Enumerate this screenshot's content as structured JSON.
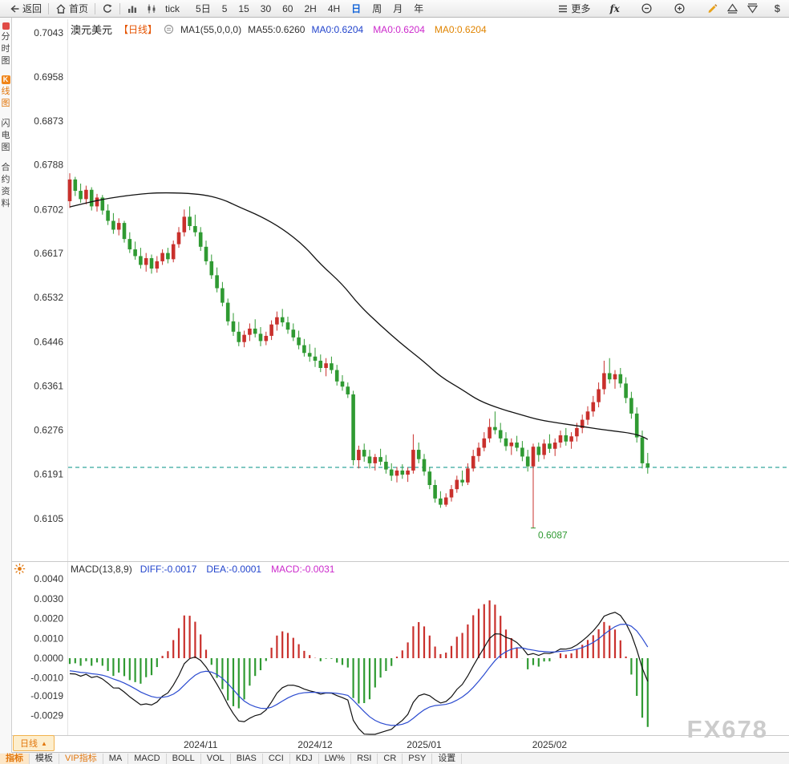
{
  "toolbar": {
    "back_label": "返回",
    "home_label": "首页",
    "tick_label": "tick",
    "periods": [
      "5日",
      "5",
      "15",
      "30",
      "60",
      "2H",
      "4H",
      "日",
      "周",
      "月",
      "年"
    ],
    "active_period": "日",
    "more_label": "更多",
    "fx_label": "fx",
    "dollar_label": "$"
  },
  "sidebar": {
    "items": [
      {
        "label": "分时图",
        "active": false
      },
      {
        "label": "K线图",
        "badge_first_char": true,
        "active": true
      },
      {
        "label": "闪电图",
        "active": false
      },
      {
        "label": "合约资料",
        "active": false
      }
    ]
  },
  "main_header": {
    "symbol": "澳元美元",
    "period_tag": "【日线】",
    "ma_settings": "MA1(55,0,0,0)",
    "ma55_label": "MA55:0.6260",
    "ma_values": [
      {
        "text": "MA0:0.6204",
        "color": "#2244cc"
      },
      {
        "text": "MA0:0.6204",
        "color": "#cc2acc"
      },
      {
        "text": "MA0:0.6204",
        "color": "#e08400"
      }
    ]
  },
  "macd_header": {
    "title": "MACD(13,8,9)",
    "values": [
      {
        "text": "DIFF:-0.0017",
        "color": "#2244cc"
      },
      {
        "text": "DEA:-0.0001",
        "color": "#2244cc"
      },
      {
        "text": "MACD:-0.0031",
        "color": "#cc2acc"
      }
    ]
  },
  "bottom": {
    "period_button": "日线",
    "period_button_arrow": "▲",
    "tabs": [
      {
        "label": "指标",
        "style": "active"
      },
      {
        "label": "模板",
        "style": "normal"
      },
      {
        "label": "VIP指标",
        "style": "vip"
      },
      {
        "label": "MA",
        "style": "normal"
      },
      {
        "label": "MACD",
        "style": "normal"
      },
      {
        "label": "BOLL",
        "style": "normal"
      },
      {
        "label": "VOL",
        "style": "normal"
      },
      {
        "label": "BIAS",
        "style": "normal"
      },
      {
        "label": "CCI",
        "style": "normal"
      },
      {
        "label": "KDJ",
        "style": "normal"
      },
      {
        "label": "LW%",
        "style": "normal"
      },
      {
        "label": "RSI",
        "style": "normal"
      },
      {
        "label": "CR",
        "style": "normal"
      },
      {
        "label": "PSY",
        "style": "normal"
      },
      {
        "label": "设置",
        "style": "normal"
      }
    ]
  },
  "watermark": "FX678",
  "chart_data": {
    "type": "candlestick",
    "symbol": "澳元美元",
    "timeframe": "日线",
    "price_axis_ticks": [
      "0.7043",
      "0.6958",
      "0.6873",
      "0.6788",
      "0.6702",
      "0.6617",
      "0.6532",
      "0.6446",
      "0.6361",
      "0.6276",
      "0.6191",
      "0.6105"
    ],
    "price_range": {
      "top": 0.7043,
      "bottom": 0.6105
    },
    "x_ticks": [
      {
        "label": "2024/11",
        "index": 24
      },
      {
        "label": "2024/12",
        "index": 45
      },
      {
        "label": "2025/01",
        "index": 65
      },
      {
        "label": "2025/02",
        "index": 88
      }
    ],
    "current_price": 0.6204,
    "low_annotation": {
      "text": "0.6087",
      "index": 85
    },
    "ma55_value": 0.626,
    "candles": [
      [
        0.6718,
        0.6772,
        0.6705,
        0.676
      ],
      [
        0.676,
        0.6765,
        0.6728,
        0.6738
      ],
      [
        0.6738,
        0.6752,
        0.6715,
        0.6722
      ],
      [
        0.6722,
        0.6748,
        0.6712,
        0.674
      ],
      [
        0.674,
        0.6745,
        0.67,
        0.6708
      ],
      [
        0.6708,
        0.6732,
        0.6698,
        0.6725
      ],
      [
        0.6725,
        0.673,
        0.6692,
        0.67
      ],
      [
        0.67,
        0.6712,
        0.6672,
        0.668
      ],
      [
        0.668,
        0.6695,
        0.6655,
        0.6663
      ],
      [
        0.6663,
        0.6685,
        0.6652,
        0.6676
      ],
      [
        0.6676,
        0.668,
        0.6638,
        0.6645
      ],
      [
        0.6645,
        0.6658,
        0.6618,
        0.6625
      ],
      [
        0.6625,
        0.664,
        0.6605,
        0.6612
      ],
      [
        0.6612,
        0.6628,
        0.6588,
        0.6595
      ],
      [
        0.6595,
        0.6618,
        0.6582,
        0.6608
      ],
      [
        0.6608,
        0.6615,
        0.6578,
        0.6588
      ],
      [
        0.6588,
        0.6612,
        0.658,
        0.6602
      ],
      [
        0.6602,
        0.6625,
        0.6595,
        0.6618
      ],
      [
        0.6618,
        0.6628,
        0.6598,
        0.6606
      ],
      [
        0.6606,
        0.6642,
        0.66,
        0.6635
      ],
      [
        0.6635,
        0.6668,
        0.6628,
        0.6658
      ],
      [
        0.6658,
        0.6702,
        0.665,
        0.6688
      ],
      [
        0.6688,
        0.6708,
        0.6662,
        0.667
      ],
      [
        0.667,
        0.6692,
        0.665,
        0.6658
      ],
      [
        0.6658,
        0.6668,
        0.6622,
        0.663
      ],
      [
        0.663,
        0.6642,
        0.6595,
        0.6602
      ],
      [
        0.6602,
        0.6615,
        0.6568,
        0.6575
      ],
      [
        0.6575,
        0.659,
        0.6542,
        0.655
      ],
      [
        0.655,
        0.6562,
        0.6515,
        0.6522
      ],
      [
        0.6522,
        0.653,
        0.6478,
        0.6486
      ],
      [
        0.6486,
        0.6502,
        0.6458,
        0.6466
      ],
      [
        0.6466,
        0.6485,
        0.6438,
        0.6446
      ],
      [
        0.6446,
        0.6468,
        0.6436,
        0.646
      ],
      [
        0.646,
        0.6482,
        0.6448,
        0.6472
      ],
      [
        0.6472,
        0.649,
        0.6455,
        0.6462
      ],
      [
        0.6462,
        0.6475,
        0.6438,
        0.6448
      ],
      [
        0.6448,
        0.6466,
        0.644,
        0.6458
      ],
      [
        0.6458,
        0.6488,
        0.645,
        0.648
      ],
      [
        0.648,
        0.6505,
        0.6468,
        0.6494
      ],
      [
        0.6494,
        0.651,
        0.6476,
        0.6484
      ],
      [
        0.6484,
        0.6495,
        0.6462,
        0.647
      ],
      [
        0.647,
        0.6482,
        0.6448,
        0.6455
      ],
      [
        0.6455,
        0.6468,
        0.6432,
        0.644
      ],
      [
        0.644,
        0.6452,
        0.6418,
        0.6425
      ],
      [
        0.6425,
        0.6442,
        0.6408,
        0.6418
      ],
      [
        0.6418,
        0.6435,
        0.6398,
        0.641
      ],
      [
        0.641,
        0.6422,
        0.6388,
        0.6396
      ],
      [
        0.6396,
        0.6415,
        0.638,
        0.6405
      ],
      [
        0.6405,
        0.6418,
        0.6385,
        0.6392
      ],
      [
        0.6392,
        0.6402,
        0.6362,
        0.637
      ],
      [
        0.637,
        0.6382,
        0.6352,
        0.636
      ],
      [
        0.636,
        0.6368,
        0.6338,
        0.6345
      ],
      [
        0.6345,
        0.6352,
        0.6208,
        0.6218
      ],
      [
        0.6218,
        0.6246,
        0.6202,
        0.6238
      ],
      [
        0.6238,
        0.625,
        0.6215,
        0.6225
      ],
      [
        0.6225,
        0.6238,
        0.6202,
        0.6212
      ],
      [
        0.6212,
        0.623,
        0.6198,
        0.6224
      ],
      [
        0.6224,
        0.624,
        0.6208,
        0.6215
      ],
      [
        0.6215,
        0.6228,
        0.6192,
        0.62
      ],
      [
        0.62,
        0.6212,
        0.6178,
        0.6188
      ],
      [
        0.6188,
        0.6205,
        0.6175,
        0.6198
      ],
      [
        0.6198,
        0.621,
        0.6182,
        0.619
      ],
      [
        0.619,
        0.6204,
        0.6176,
        0.6198
      ],
      [
        0.6198,
        0.6268,
        0.6192,
        0.6238
      ],
      [
        0.6238,
        0.6252,
        0.6212,
        0.622
      ],
      [
        0.622,
        0.623,
        0.6188,
        0.6196
      ],
      [
        0.6196,
        0.6205,
        0.6162,
        0.617
      ],
      [
        0.617,
        0.618,
        0.6136,
        0.6144
      ],
      [
        0.6144,
        0.6158,
        0.6126,
        0.6132
      ],
      [
        0.6132,
        0.6154,
        0.6128,
        0.6146
      ],
      [
        0.6146,
        0.617,
        0.6138,
        0.6162
      ],
      [
        0.6162,
        0.6188,
        0.6155,
        0.618
      ],
      [
        0.618,
        0.6198,
        0.6168,
        0.6175
      ],
      [
        0.6175,
        0.6212,
        0.617,
        0.6202
      ],
      [
        0.6202,
        0.6238,
        0.6196,
        0.6226
      ],
      [
        0.6226,
        0.6252,
        0.6215,
        0.6242
      ],
      [
        0.6242,
        0.6272,
        0.6235,
        0.626
      ],
      [
        0.626,
        0.6298,
        0.6252,
        0.6282
      ],
      [
        0.6282,
        0.6312,
        0.6268,
        0.6276
      ],
      [
        0.6276,
        0.629,
        0.6252,
        0.626
      ],
      [
        0.626,
        0.6272,
        0.6236,
        0.6245
      ],
      [
        0.6245,
        0.626,
        0.6228,
        0.6252
      ],
      [
        0.6252,
        0.6265,
        0.6235,
        0.6242
      ],
      [
        0.6242,
        0.6255,
        0.6216,
        0.6225
      ],
      [
        0.6225,
        0.6238,
        0.6196,
        0.6206
      ],
      [
        0.6206,
        0.625,
        0.6087,
        0.6244
      ],
      [
        0.6244,
        0.6252,
        0.6215,
        0.6228
      ],
      [
        0.6228,
        0.6258,
        0.622,
        0.625
      ],
      [
        0.625,
        0.6268,
        0.6232,
        0.624
      ],
      [
        0.624,
        0.626,
        0.6226,
        0.6252
      ],
      [
        0.6252,
        0.6275,
        0.6242,
        0.6266
      ],
      [
        0.6266,
        0.628,
        0.6246,
        0.6254
      ],
      [
        0.6254,
        0.6272,
        0.624,
        0.6264
      ],
      [
        0.6264,
        0.629,
        0.6254,
        0.628
      ],
      [
        0.628,
        0.6306,
        0.627,
        0.6296
      ],
      [
        0.6296,
        0.6322,
        0.6286,
        0.6312
      ],
      [
        0.6312,
        0.6342,
        0.6302,
        0.633
      ],
      [
        0.633,
        0.6368,
        0.632,
        0.6355
      ],
      [
        0.6355,
        0.641,
        0.6345,
        0.6386
      ],
      [
        0.6386,
        0.6415,
        0.6366,
        0.6374
      ],
      [
        0.6374,
        0.6392,
        0.6356,
        0.6384
      ],
      [
        0.6384,
        0.6396,
        0.6358,
        0.6366
      ],
      [
        0.6366,
        0.6378,
        0.6328,
        0.6338
      ],
      [
        0.6338,
        0.635,
        0.6298,
        0.6308
      ],
      [
        0.6308,
        0.632,
        0.6252,
        0.6262
      ],
      [
        0.6262,
        0.6275,
        0.6202,
        0.6212
      ],
      [
        0.6212,
        0.6232,
        0.6192,
        0.6204
      ]
    ],
    "ma55_points": [
      [
        0,
        0.6707
      ],
      [
        6,
        0.6722
      ],
      [
        12,
        0.6731
      ],
      [
        17,
        0.6735
      ],
      [
        24,
        0.6732
      ],
      [
        28,
        0.6722
      ],
      [
        31,
        0.6707
      ],
      [
        35,
        0.6689
      ],
      [
        39,
        0.6665
      ],
      [
        43,
        0.6632
      ],
      [
        46,
        0.6596
      ],
      [
        50,
        0.6558
      ],
      [
        53,
        0.6518
      ],
      [
        57,
        0.6478
      ],
      [
        61,
        0.6441
      ],
      [
        65,
        0.6408
      ],
      [
        68,
        0.6379
      ],
      [
        72,
        0.6354
      ],
      [
        75,
        0.6333
      ],
      [
        79,
        0.6317
      ],
      [
        83,
        0.6305
      ],
      [
        86,
        0.6296
      ],
      [
        90,
        0.6289
      ],
      [
        94,
        0.6283
      ],
      [
        97,
        0.6278
      ],
      [
        100,
        0.6274
      ],
      [
        103,
        0.627
      ],
      [
        105,
        0.6264
      ],
      [
        106,
        0.6258
      ]
    ],
    "macd": {
      "params_label": "MACD(13,8,9)",
      "short": 8,
      "long": 13,
      "signal": 9,
      "diff": -0.0017,
      "dea": -0.0001,
      "macd": -0.0031,
      "axis_ticks": [
        "0.0040",
        "0.0030",
        "0.0020",
        "0.0010",
        "0.0000",
        "-0.0010",
        "-0.0019",
        "-0.0029"
      ],
      "preroll_closes": [
        0.6795,
        0.6788,
        0.678,
        0.6772,
        0.6765,
        0.6758,
        0.675,
        0.6744,
        0.6738,
        0.673
      ]
    },
    "colors": {
      "up": "#c9302c",
      "down": "#2f9a32",
      "ma55": "#111111",
      "diff_line": "#111111",
      "dea_line": "#2b4bd0",
      "current_price_line": "#009185",
      "low_label": "#2f9a32",
      "grid": "#e3e3e3",
      "separator": "#c9c9c9",
      "tick_text": "#333333"
    }
  }
}
